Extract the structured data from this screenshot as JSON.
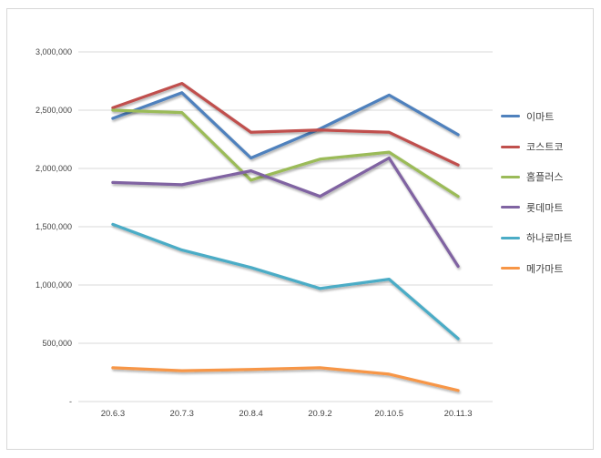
{
  "chart_data": {
    "type": "line",
    "categories": [
      "20.6.3",
      "20.7.3",
      "20.8.4",
      "20.9.2",
      "20.10.5",
      "20.11.3"
    ],
    "series": [
      {
        "name": "이마트",
        "key": "emart",
        "color": "#4F81BD",
        "values": [
          2430000,
          2650000,
          2090000,
          2340000,
          2630000,
          2290000
        ]
      },
      {
        "name": "코스트코",
        "key": "costco",
        "color": "#C0504D",
        "values": [
          2520000,
          2730000,
          2310000,
          2330000,
          2310000,
          2030000
        ]
      },
      {
        "name": "홈플러스",
        "key": "homeplus",
        "color": "#9BBB59",
        "values": [
          2500000,
          2480000,
          1900000,
          2080000,
          2140000,
          1760000
        ]
      },
      {
        "name": "롯데마트",
        "key": "lottemart",
        "color": "#8064A2",
        "values": [
          1880000,
          1860000,
          1980000,
          1760000,
          2090000,
          1160000
        ]
      },
      {
        "name": "하나로마트",
        "key": "hanaromart",
        "color": "#4BACC6",
        "values": [
          1520000,
          1300000,
          1150000,
          970000,
          1050000,
          540000
        ]
      },
      {
        "name": "메가마트",
        "key": "megamart",
        "color": "#F79646",
        "values": [
          290000,
          265000,
          275000,
          290000,
          235000,
          95000
        ]
      }
    ],
    "ylim": [
      0,
      3000000
    ],
    "yticks": [
      {
        "value": 0,
        "label": "-"
      },
      {
        "value": 500000,
        "label": "500,000"
      },
      {
        "value": 1000000,
        "label": "1,000,000"
      },
      {
        "value": 1500000,
        "label": "1,500,000"
      },
      {
        "value": 2000000,
        "label": "2,000,000"
      },
      {
        "value": 2500000,
        "label": "2,500,000"
      },
      {
        "value": 3000000,
        "label": "3,000,000"
      }
    ],
    "grid": "horizontal",
    "legend_position": "right"
  },
  "colors": {
    "background": "#FFFFFF",
    "frame_border": "#D8D8D8",
    "gridline": "#D9D9D9",
    "axis_text": "#444444",
    "legend_text": "#3F3F3F"
  }
}
